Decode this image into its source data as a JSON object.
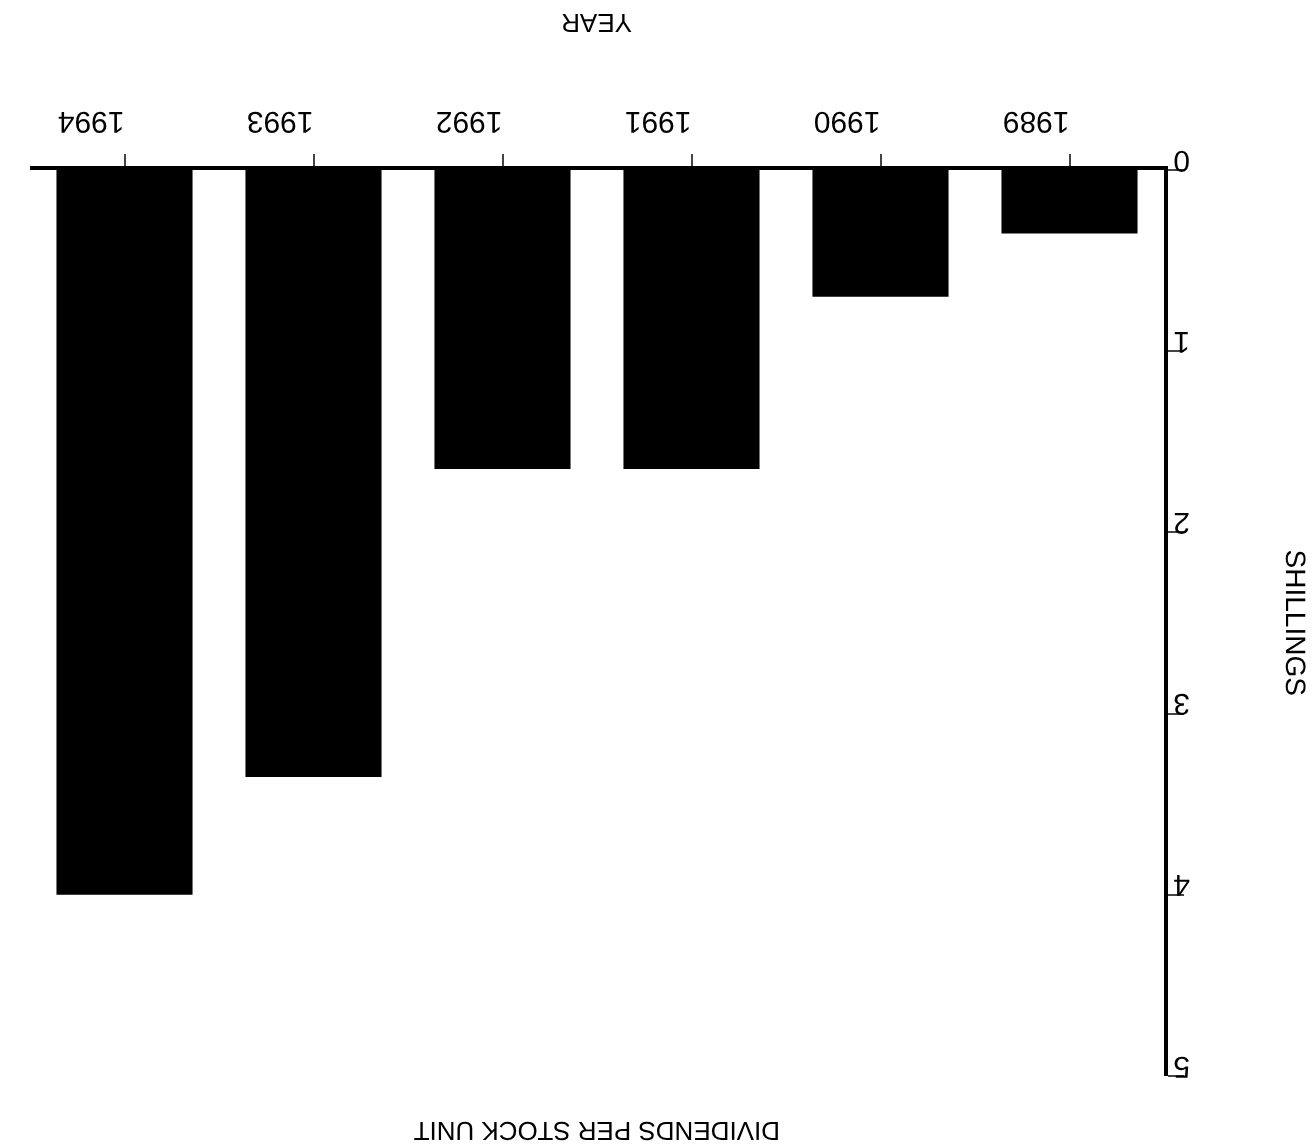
{
  "chart_data": {
    "type": "bar",
    "title": "DIVIDENDS PER STOCK UNIT",
    "xlabel": "YEAR",
    "ylabel": "SHILLINGS",
    "categories": [
      "1994",
      "1993",
      "1992",
      "1991",
      "1990",
      "1989"
    ],
    "values": [
      4.0,
      3.35,
      1.65,
      1.65,
      0.7,
      0.35
    ],
    "color": "#000000",
    "ylim": [
      5,
      0
    ],
    "yticks": [
      0,
      1,
      2,
      3,
      4,
      5
    ]
  }
}
